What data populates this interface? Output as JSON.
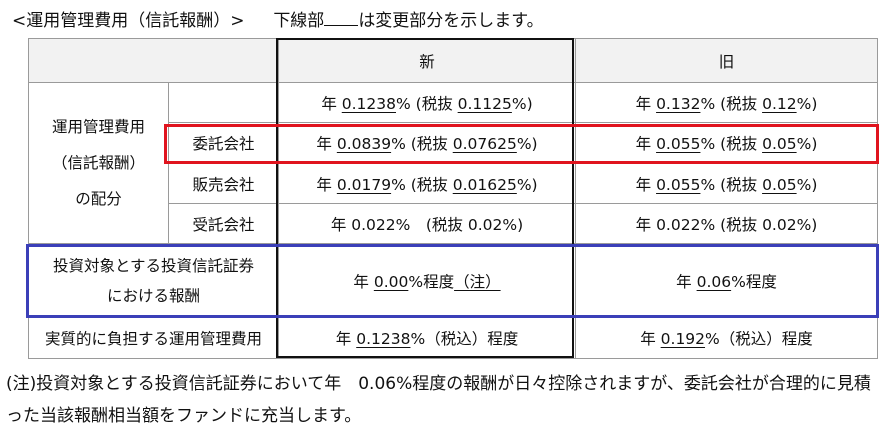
{
  "title": {
    "prefix": "<運用管理費用（信託報酬）>",
    "middle": "下線部",
    "suffix": "は変更部分を示します。"
  },
  "table": {
    "header": {
      "new": "新",
      "old": "旧"
    },
    "total_row": {
      "new": {
        "a": "年 ",
        "b": "0.1238",
        "c": "% (税抜 ",
        "d": "0.1125",
        "e": "%)"
      },
      "old": {
        "a": "年 ",
        "b": "0.132",
        "c": "% (税抜 ",
        "d": "0.12",
        "e": "%)"
      }
    },
    "group_label_lines": [
      "運用管理費用",
      "（信託報酬）",
      "の配分"
    ],
    "rows": [
      {
        "label": "委託会社",
        "new": {
          "a": "年 ",
          "b": "0.0839",
          "c": "% (税抜 ",
          "d": "0.07625",
          "e": "%)"
        },
        "old": {
          "a": "年 ",
          "b": "0.055",
          "c": "% (税抜 ",
          "d": "0.05",
          "e": "%)"
        }
      },
      {
        "label": "販売会社",
        "new": {
          "a": "年 ",
          "b": "0.0179",
          "c": "% (税抜 ",
          "d": "0.01625",
          "e": "%)"
        },
        "old": {
          "a": "年 ",
          "b": "0.055",
          "c": "% (税抜 ",
          "d": "0.05",
          "e": "%)"
        }
      },
      {
        "label": "受託会社",
        "new": "年 0.022%　(税抜 0.02%)",
        "old": "年 0.022% (税抜 0.02%)"
      }
    ],
    "invest_row": {
      "label_lines": [
        "投資対象とする投資信託証券",
        "における報酬"
      ],
      "new": {
        "a": "年 ",
        "b": "0.00",
        "c": "%程度",
        "d": "（注）"
      },
      "old": {
        "a": "年 ",
        "b": "0.06",
        "c": "%程度"
      }
    },
    "real_row": {
      "label": "実質的に負担する運用管理費用",
      "new": {
        "a": "年 ",
        "b": "0.1238",
        "c": "%（税込）程度"
      },
      "old": {
        "a": "年 ",
        "b": "0.192",
        "c": "%（税込）程度"
      }
    }
  },
  "note": "(注)投資対象とする投資信託証券において年　0.06%程度の報酬が日々控除されますが、委託会社が合理的に見積った当該報酬相当額をファンドに充当します。",
  "colors": {
    "red_box": "#e0141e",
    "blue_box": "#3b3fb8",
    "header_bg": "#f2f2f2"
  }
}
